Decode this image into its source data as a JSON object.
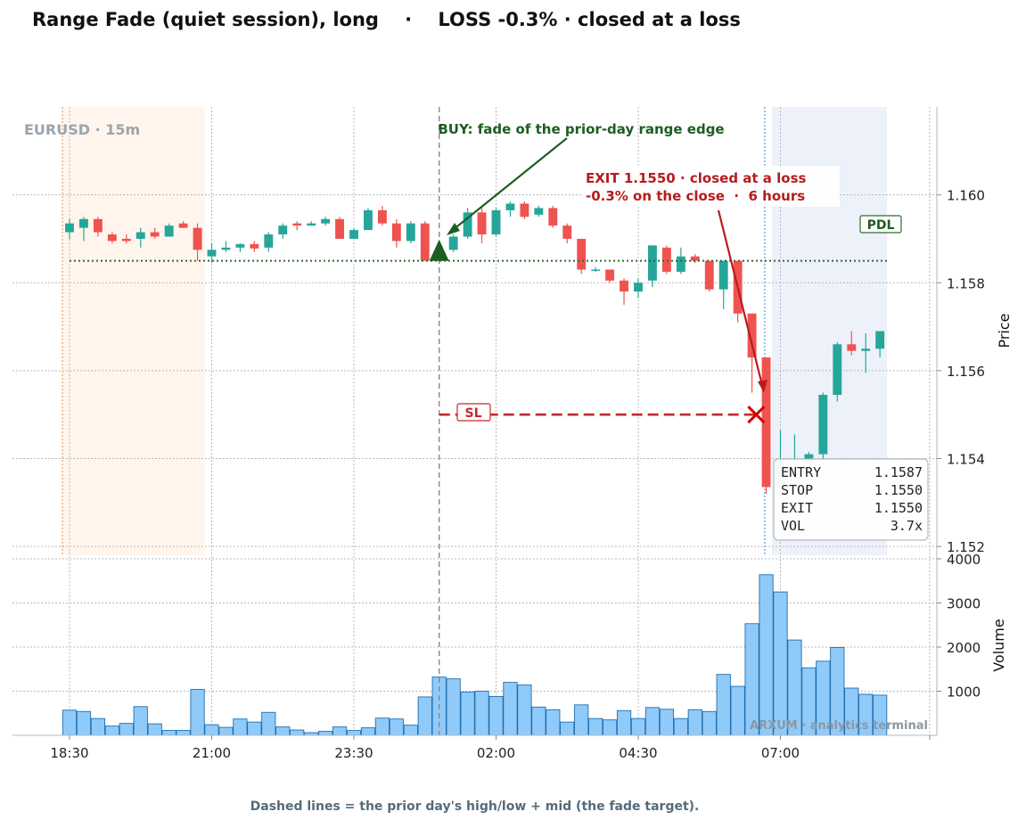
{
  "title": "Range Fade (quiet session), long    ·    LOSS -0.3% · closed at a loss",
  "footer": "Dashed lines = the prior day's high/low + mid (the fade target).",
  "watermark": "EURUSD · 15m",
  "brand": "ARXUM · analytics terminal",
  "colors": {
    "up": "#26a69a",
    "down": "#ef5350",
    "volume": "#90caf9",
    "buy": "#1b5e20",
    "exit": "#b71c1c",
    "pre_session": "#fff3e8",
    "post_session": "#e8eef8"
  },
  "chart_data": {
    "type": "candlestick",
    "ylabel": "Price",
    "volume_label": "Volume",
    "ylim": [
      1.1518,
      1.162
    ],
    "yticks": [
      "1.152",
      "1.154",
      "1.156",
      "1.158",
      "1.160"
    ],
    "volume_ylim": [
      0,
      4000
    ],
    "volume_ticks": [
      "1000",
      "2000",
      "3000",
      "4000"
    ],
    "xticks": [
      "18:30",
      "21:00",
      "23:30",
      "02:00",
      "04:30",
      "07:00"
    ],
    "xtick_index": [
      0,
      10,
      20,
      30,
      40,
      50
    ],
    "candles": [
      {
        "o": 1.15915,
        "h": 1.15945,
        "l": 1.159,
        "c": 1.15935,
        "v": 570
      },
      {
        "o": 1.15925,
        "h": 1.1595,
        "l": 1.15895,
        "c": 1.15945,
        "v": 540
      },
      {
        "o": 1.15945,
        "h": 1.1595,
        "l": 1.15905,
        "c": 1.15915,
        "v": 380
      },
      {
        "o": 1.1591,
        "h": 1.15915,
        "l": 1.1589,
        "c": 1.15895,
        "v": 210
      },
      {
        "o": 1.159,
        "h": 1.1591,
        "l": 1.1589,
        "c": 1.15895,
        "v": 270
      },
      {
        "o": 1.159,
        "h": 1.15925,
        "l": 1.1588,
        "c": 1.15915,
        "v": 650
      },
      {
        "o": 1.15915,
        "h": 1.15925,
        "l": 1.159,
        "c": 1.15905,
        "v": 260
      },
      {
        "o": 1.15905,
        "h": 1.15935,
        "l": 1.15905,
        "c": 1.1593,
        "v": 110
      },
      {
        "o": 1.15935,
        "h": 1.1594,
        "l": 1.15925,
        "c": 1.15925,
        "v": 110
      },
      {
        "o": 1.15925,
        "h": 1.15935,
        "l": 1.1585,
        "c": 1.15875,
        "v": 1040
      },
      {
        "o": 1.1586,
        "h": 1.1589,
        "l": 1.15845,
        "c": 1.15875,
        "v": 240
      },
      {
        "o": 1.15875,
        "h": 1.15895,
        "l": 1.1587,
        "c": 1.1588,
        "v": 180
      },
      {
        "o": 1.1588,
        "h": 1.1589,
        "l": 1.1587,
        "c": 1.15888,
        "v": 370
      },
      {
        "o": 1.15888,
        "h": 1.15895,
        "l": 1.1587,
        "c": 1.15878,
        "v": 300
      },
      {
        "o": 1.1588,
        "h": 1.15915,
        "l": 1.1587,
        "c": 1.1591,
        "v": 520
      },
      {
        "o": 1.1591,
        "h": 1.15935,
        "l": 1.159,
        "c": 1.1593,
        "v": 190
      },
      {
        "o": 1.15935,
        "h": 1.1594,
        "l": 1.1592,
        "c": 1.1593,
        "v": 120
      },
      {
        "o": 1.1593,
        "h": 1.1594,
        "l": 1.1593,
        "c": 1.15935,
        "v": 60
      },
      {
        "o": 1.15935,
        "h": 1.1595,
        "l": 1.1593,
        "c": 1.15945,
        "v": 90
      },
      {
        "o": 1.15945,
        "h": 1.1595,
        "l": 1.159,
        "c": 1.159,
        "v": 190
      },
      {
        "o": 1.159,
        "h": 1.15925,
        "l": 1.159,
        "c": 1.1592,
        "v": 110
      },
      {
        "o": 1.1592,
        "h": 1.1597,
        "l": 1.1592,
        "c": 1.15965,
        "v": 170
      },
      {
        "o": 1.15965,
        "h": 1.15975,
        "l": 1.1593,
        "c": 1.15935,
        "v": 390
      },
      {
        "o": 1.15935,
        "h": 1.15945,
        "l": 1.1588,
        "c": 1.15895,
        "v": 370
      },
      {
        "o": 1.15895,
        "h": 1.1594,
        "l": 1.1589,
        "c": 1.15935,
        "v": 230
      },
      {
        "o": 1.15935,
        "h": 1.1594,
        "l": 1.1585,
        "c": 1.1585,
        "v": 870
      },
      {
        "o": 1.1585,
        "h": 1.1588,
        "l": 1.1585,
        "c": 1.15865,
        "v": 1320
      },
      {
        "o": 1.15875,
        "h": 1.1591,
        "l": 1.1587,
        "c": 1.15905,
        "v": 1280
      },
      {
        "o": 1.15905,
        "h": 1.1597,
        "l": 1.159,
        "c": 1.1596,
        "v": 980
      },
      {
        "o": 1.1596,
        "h": 1.15975,
        "l": 1.1589,
        "c": 1.1591,
        "v": 1000
      },
      {
        "o": 1.1591,
        "h": 1.1597,
        "l": 1.15905,
        "c": 1.15965,
        "v": 880
      },
      {
        "o": 1.15965,
        "h": 1.15985,
        "l": 1.1595,
        "c": 1.1598,
        "v": 1200
      },
      {
        "o": 1.1598,
        "h": 1.15985,
        "l": 1.15945,
        "c": 1.1595,
        "v": 1140
      },
      {
        "o": 1.15955,
        "h": 1.15975,
        "l": 1.1595,
        "c": 1.1597,
        "v": 640
      },
      {
        "o": 1.1597,
        "h": 1.15975,
        "l": 1.15925,
        "c": 1.1593,
        "v": 580
      },
      {
        "o": 1.1593,
        "h": 1.15935,
        "l": 1.1589,
        "c": 1.159,
        "v": 300
      },
      {
        "o": 1.159,
        "h": 1.159,
        "l": 1.1582,
        "c": 1.1583,
        "v": 690
      },
      {
        "o": 1.1583,
        "h": 1.15835,
        "l": 1.15825,
        "c": 1.1583,
        "v": 380
      },
      {
        "o": 1.1583,
        "h": 1.1583,
        "l": 1.158,
        "c": 1.15805,
        "v": 350
      },
      {
        "o": 1.15805,
        "h": 1.1581,
        "l": 1.1575,
        "c": 1.1578,
        "v": 560
      },
      {
        "o": 1.1578,
        "h": 1.1581,
        "l": 1.15765,
        "c": 1.158,
        "v": 380
      },
      {
        "o": 1.15805,
        "h": 1.15885,
        "l": 1.1579,
        "c": 1.15885,
        "v": 630
      },
      {
        "o": 1.1588,
        "h": 1.15885,
        "l": 1.1582,
        "c": 1.15825,
        "v": 590
      },
      {
        "o": 1.15825,
        "h": 1.1588,
        "l": 1.1582,
        "c": 1.1586,
        "v": 380
      },
      {
        "o": 1.1586,
        "h": 1.15865,
        "l": 1.15845,
        "c": 1.1585,
        "v": 580
      },
      {
        "o": 1.1585,
        "h": 1.1585,
        "l": 1.1578,
        "c": 1.15785,
        "v": 540
      },
      {
        "o": 1.15785,
        "h": 1.1585,
        "l": 1.1574,
        "c": 1.1585,
        "v": 1380
      },
      {
        "o": 1.1585,
        "h": 1.1585,
        "l": 1.1571,
        "c": 1.1573,
        "v": 1110
      },
      {
        "o": 1.1573,
        "h": 1.1573,
        "l": 1.1555,
        "c": 1.1563,
        "v": 2530
      },
      {
        "o": 1.1563,
        "h": 1.1563,
        "l": 1.1532,
        "c": 1.15335,
        "v": 3640
      },
      {
        "o": 1.15335,
        "h": 1.15465,
        "l": 1.1533,
        "c": 1.15395,
        "v": 3250
      },
      {
        "o": 1.1538,
        "h": 1.15455,
        "l": 1.1537,
        "c": 1.1538,
        "v": 2160
      },
      {
        "o": 1.1539,
        "h": 1.15415,
        "l": 1.15375,
        "c": 1.1541,
        "v": 1530
      },
      {
        "o": 1.1541,
        "h": 1.1555,
        "l": 1.154,
        "c": 1.15545,
        "v": 1680
      },
      {
        "o": 1.15545,
        "h": 1.15665,
        "l": 1.1553,
        "c": 1.1566,
        "v": 1990
      },
      {
        "o": 1.1566,
        "h": 1.1569,
        "l": 1.15635,
        "c": 1.15645,
        "v": 1070
      },
      {
        "o": 1.15645,
        "h": 1.15685,
        "l": 1.15595,
        "c": 1.1565,
        "v": 930
      },
      {
        "o": 1.1565,
        "h": 1.1569,
        "l": 1.1563,
        "c": 1.1569,
        "v": 910
      }
    ],
    "pdl_level": 1.1585,
    "pdl_label": "PDL",
    "stop_level": 1.155,
    "sl_label": "SL",
    "entry": {
      "index": 26,
      "price": 1.1587
    },
    "exit": {
      "index": 48.3,
      "price": 1.155
    },
    "buy_annotation": "BUY: fade of the prior-day range edge",
    "exit_annotation_line1": "EXIT 1.1550 · closed at a loss",
    "exit_annotation_line2": "-0.3% on the close  ·  6 hours",
    "pre_session_end_index": 9.5,
    "post_session_start_index": 49.4,
    "stats": [
      {
        "label": "ENTRY",
        "value": "1.1587"
      },
      {
        "label": "STOP",
        "value": "1.1550"
      },
      {
        "label": "EXIT",
        "value": "1.1550"
      },
      {
        "label": "VOL",
        "value": "3.7x"
      }
    ]
  }
}
